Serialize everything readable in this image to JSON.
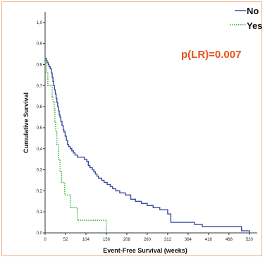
{
  "chart_data": {
    "type": "line",
    "step": true,
    "xlabel": "Event-Free Survival (weeks)",
    "ylabel": "Cumulative Survival",
    "xlim": [
      0,
      540
    ],
    "ylim": [
      0,
      1.05
    ],
    "x_ticks": [
      "0",
      "52",
      "104",
      "156",
      "208",
      "260",
      "312",
      "364",
      "416",
      "468",
      "520"
    ],
    "x_tick_values": [
      0,
      52,
      104,
      156,
      208,
      260,
      312,
      364,
      416,
      468,
      520
    ],
    "y_ticks": [
      "0,0",
      "0,1",
      "0,2",
      "0,3",
      "0,4",
      "0,5",
      "0,6",
      "0,7",
      "0,8",
      "0,9",
      "1,0"
    ],
    "y_tick_values": [
      0,
      0.1,
      0.2,
      0.3,
      0.4,
      0.5,
      0.6,
      0.7,
      0.8,
      0.9,
      1.0
    ],
    "annotation": "p(LR)=0.007",
    "series": [
      {
        "name": "No",
        "color": "#3a4aa0",
        "dash": "solid",
        "points": [
          [
            0,
            0.83
          ],
          [
            3,
            0.82
          ],
          [
            5,
            0.81
          ],
          [
            8,
            0.8
          ],
          [
            10,
            0.79
          ],
          [
            13,
            0.78
          ],
          [
            16,
            0.76
          ],
          [
            18,
            0.74
          ],
          [
            20,
            0.72
          ],
          [
            22,
            0.7
          ],
          [
            24,
            0.68
          ],
          [
            26,
            0.66
          ],
          [
            28,
            0.64
          ],
          [
            30,
            0.62
          ],
          [
            32,
            0.6
          ],
          [
            34,
            0.58
          ],
          [
            36,
            0.56
          ],
          [
            38,
            0.55
          ],
          [
            40,
            0.53
          ],
          [
            43,
            0.51
          ],
          [
            46,
            0.49
          ],
          [
            48,
            0.48
          ],
          [
            51,
            0.46
          ],
          [
            54,
            0.44
          ],
          [
            57,
            0.42
          ],
          [
            60,
            0.41
          ],
          [
            64,
            0.4
          ],
          [
            68,
            0.39
          ],
          [
            72,
            0.38
          ],
          [
            76,
            0.37
          ],
          [
            82,
            0.36
          ],
          [
            95,
            0.36
          ],
          [
            100,
            0.35
          ],
          [
            106,
            0.34
          ],
          [
            110,
            0.32
          ],
          [
            114,
            0.31
          ],
          [
            120,
            0.3
          ],
          [
            124,
            0.29
          ],
          [
            128,
            0.28
          ],
          [
            132,
            0.27
          ],
          [
            136,
            0.26
          ],
          [
            144,
            0.25
          ],
          [
            150,
            0.24
          ],
          [
            158,
            0.23
          ],
          [
            166,
            0.22
          ],
          [
            172,
            0.21
          ],
          [
            180,
            0.2
          ],
          [
            190,
            0.19
          ],
          [
            204,
            0.18
          ],
          [
            218,
            0.16
          ],
          [
            230,
            0.15
          ],
          [
            245,
            0.14
          ],
          [
            260,
            0.13
          ],
          [
            275,
            0.12
          ],
          [
            292,
            0.11
          ],
          [
            312,
            0.09
          ],
          [
            320,
            0.05
          ],
          [
            380,
            0.04
          ],
          [
            400,
            0.03
          ],
          [
            470,
            0.03
          ],
          [
            500,
            0.01
          ],
          [
            520,
            0.0
          ]
        ]
      },
      {
        "name": "Yes",
        "color": "#2fae2f",
        "dash": "dotted",
        "points": [
          [
            0,
            0.82
          ],
          [
            4,
            0.76
          ],
          [
            7,
            0.7
          ],
          [
            18,
            0.65
          ],
          [
            20,
            0.62
          ],
          [
            23,
            0.59
          ],
          [
            25,
            0.53
          ],
          [
            27,
            0.48
          ],
          [
            30,
            0.42
          ],
          [
            34,
            0.35
          ],
          [
            38,
            0.29
          ],
          [
            42,
            0.24
          ],
          [
            50,
            0.18
          ],
          [
            62,
            0.18
          ],
          [
            64,
            0.12
          ],
          [
            80,
            0.12
          ],
          [
            82,
            0.06
          ],
          [
            150,
            0.06
          ],
          [
            156,
            0.0
          ]
        ]
      }
    ],
    "legend": [
      {
        "label": "No",
        "color": "#3a4aa0",
        "dash": "solid"
      },
      {
        "label": "Yes",
        "color": "#2fae2f",
        "dash": "dotted"
      }
    ]
  }
}
